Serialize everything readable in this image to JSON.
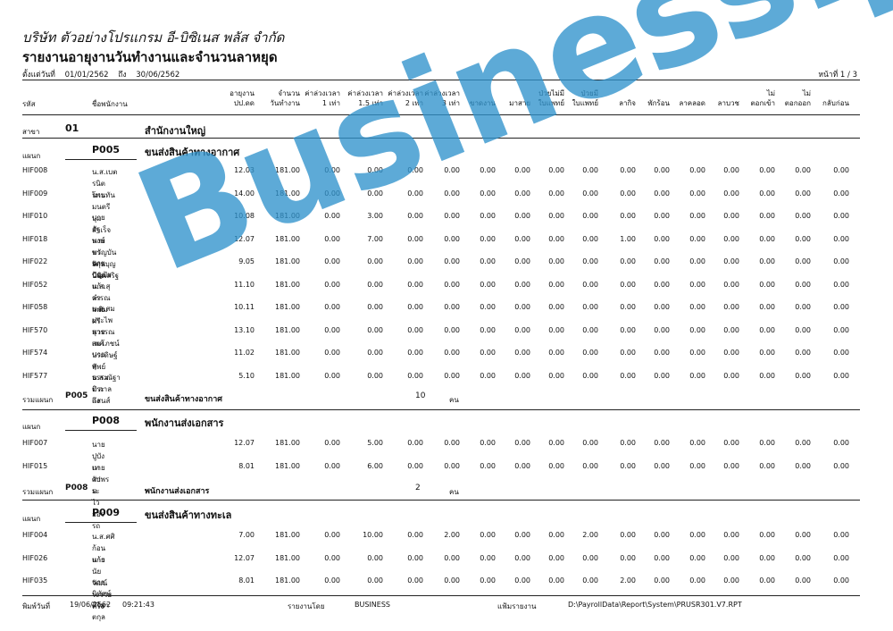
{
  "company": "บริษัท ตัวอย่างโปรแกรม อี-บิซิเนส พลัส จำกัด",
  "title": "รายงานอายุงานวันทำงานและจำนวนลาหยุด",
  "range": {
    "label": "ตั้งแต่วันที่",
    "from": "01/01/2562",
    "to_label": "ถึง",
    "to": "30/06/2562"
  },
  "page": "หน้าที่ 1 / 3",
  "headers": {
    "code": "รหัส",
    "name": "ชื่อพนักงาน",
    "cols": [
      [
        "อายุงาน",
        "ปป.ดด"
      ],
      [
        "จำนวน",
        "วันทำงาน"
      ],
      [
        "ค่าล่วงเวลา",
        "1 เท่า"
      ],
      [
        "ค่าล่วงเวลา",
        "1.5 เท่า"
      ],
      [
        "ค่าล่วงเวลา",
        "2 เท่า"
      ],
      [
        "ค่าล่วงเวลา",
        "3 เท่า"
      ],
      [
        "",
        "ขาดงาน"
      ],
      [
        "",
        "มาสาย"
      ],
      [
        "ป่วยไม่มี",
        "ใบแพทย์"
      ],
      [
        "ป่วยมี",
        "ใบแพทย์"
      ],
      [
        "",
        "ลากิจ"
      ],
      [
        "",
        "พักร้อน"
      ],
      [
        "",
        "ลาคลอด"
      ],
      [
        "",
        "ลาบวช"
      ],
      [
        "ไม่",
        "ตอกเข้า"
      ],
      [
        "ไม่",
        "ตอกออก"
      ],
      [
        "",
        "กลับก่อน"
      ]
    ]
  },
  "branch": {
    "label": "สาขา",
    "code": "01",
    "name": "สำนักงานใหญ่"
  },
  "dept_label": "แผนก",
  "sum_label": "รวมแผนก",
  "unit": "คน",
  "departments": [
    {
      "code": "P005",
      "name": "ขนส่งสินค้าทางอากาศ",
      "count": "10",
      "rows": [
        {
          "code": "HIF008",
          "name": "น.ส.เบตรนิต   โพนทัน",
          "v": [
            "12.03",
            "181.00",
            "0.00",
            "0.00",
            "0.00",
            "0.00",
            "0.00",
            "0.00",
            "0.00",
            "0.00",
            "0.00",
            "0.00",
            "0.00",
            "0.00",
            "0.00",
            "0.00",
            "0.00"
          ]
        },
        {
          "code": "HIF009",
          "name": "นายมนตรี   บุ่มสำเร็จ",
          "v": [
            "14.00",
            "181.00",
            "0.00",
            "0.00",
            "0.00",
            "0.00",
            "0.00",
            "0.00",
            "0.00",
            "0.00",
            "0.00",
            "0.00",
            "0.00",
            "0.00",
            "0.00",
            "0.00",
            "0.00"
          ]
        },
        {
          "code": "HIF010",
          "name": "นายอัฐพงษ์   พรรัตนนิมิต",
          "v": [
            "10.08",
            "181.00",
            "0.00",
            "3.00",
            "0.00",
            "0.00",
            "0.00",
            "0.00",
            "0.00",
            "0.00",
            "0.00",
            "0.00",
            "0.00",
            "0.00",
            "0.00",
            "0.00",
            "0.00"
          ]
        },
        {
          "code": "HIF018",
          "name": "นายขวัญบัน   สกุลบุญประเสริฐ",
          "v": [
            "12.07",
            "181.00",
            "0.00",
            "7.00",
            "0.00",
            "0.00",
            "0.00",
            "0.00",
            "0.00",
            "0.00",
            "1.00",
            "0.00",
            "0.00",
            "0.00",
            "0.00",
            "0.00",
            "0.00"
          ]
        },
        {
          "code": "HIF022",
          "name": "นายปัญปัย   แก้วคำแพง",
          "v": [
            "9.05",
            "181.00",
            "0.00",
            "0.00",
            "0.00",
            "0.00",
            "0.00",
            "0.00",
            "0.00",
            "0.00",
            "0.00",
            "0.00",
            "0.00",
            "0.00",
            "0.00",
            "0.00",
            "0.00"
          ]
        },
        {
          "code": "HIF052",
          "name": "น.ส.สุวรรณา   พิมศรี",
          "v": [
            "11.10",
            "181.00",
            "0.00",
            "0.00",
            "0.00",
            "0.00",
            "0.00",
            "0.00",
            "0.00",
            "0.00",
            "0.00",
            "0.00",
            "0.00",
            "0.00",
            "0.00",
            "0.00",
            "0.00"
          ]
        },
        {
          "code": "HIF058",
          "name": "น.ส.สมประไพ   สุวรรณเพศ",
          "v": [
            "10.11",
            "181.00",
            "0.00",
            "0.00",
            "0.00",
            "0.00",
            "0.00",
            "0.00",
            "0.00",
            "0.00",
            "0.00",
            "0.00",
            "0.00",
            "0.00",
            "0.00",
            "0.00",
            "0.00"
          ]
        },
        {
          "code": "HIF570",
          "name": "นายสมโภชน์   ประดิษฐ์ทัพย์",
          "v": [
            "13.10",
            "181.00",
            "0.00",
            "0.00",
            "0.00",
            "0.00",
            "0.00",
            "0.00",
            "0.00",
            "0.00",
            "0.00",
            "0.00",
            "0.00",
            "0.00",
            "0.00",
            "0.00",
            "0.00"
          ]
        },
        {
          "code": "HIF574",
          "name": "นายสุธรรม   ประถึง",
          "v": [
            "11.02",
            "181.00",
            "0.00",
            "0.00",
            "0.00",
            "0.00",
            "0.00",
            "0.00",
            "0.00",
            "0.00",
            "0.00",
            "0.00",
            "0.00",
            "0.00",
            "0.00",
            "0.00",
            "0.00"
          ]
        },
        {
          "code": "HIF577",
          "name": "น.ส.ณัฐาติ   กาลแสนส์",
          "v": [
            "5.10",
            "181.00",
            "0.00",
            "0.00",
            "0.00",
            "0.00",
            "0.00",
            "0.00",
            "0.00",
            "0.00",
            "0.00",
            "0.00",
            "0.00",
            "0.00",
            "0.00",
            "0.00",
            "0.00"
          ]
        }
      ]
    },
    {
      "code": "P008",
      "name": "พนักงานส่งเอกสาร",
      "count": "2",
      "rows": [
        {
          "code": "HIF007",
          "name": "นายปูบัง   เทศาพรม",
          "v": [
            "12.07",
            "181.00",
            "0.00",
            "5.00",
            "0.00",
            "0.00",
            "0.00",
            "0.00",
            "0.00",
            "0.00",
            "0.00",
            "0.00",
            "0.00",
            "0.00",
            "0.00",
            "0.00",
            "0.00"
          ]
        },
        {
          "code": "HIF015",
          "name": "นายวัประ   ไวยอรรถ",
          "v": [
            "8.01",
            "181.00",
            "0.00",
            "6.00",
            "0.00",
            "0.00",
            "0.00",
            "0.00",
            "0.00",
            "0.00",
            "0.00",
            "0.00",
            "0.00",
            "0.00",
            "0.00",
            "0.00",
            "0.00"
          ]
        }
      ]
    },
    {
      "code": "P009",
      "name": "ขนส่งสินค้าทางทะเล",
      "rows": [
        {
          "code": "HIF004",
          "name": "น.ส.ศศิ   ก้อนแก้ว",
          "v": [
            "7.00",
            "181.00",
            "0.00",
            "10.00",
            "0.00",
            "2.00",
            "0.00",
            "0.00",
            "0.00",
            "2.00",
            "0.00",
            "0.00",
            "0.00",
            "0.00",
            "0.00",
            "0.00",
            "0.00"
          ]
        },
        {
          "code": "HIF026",
          "name": "นายนัยวัฒน์   ระรวยทรง",
          "v": [
            "12.07",
            "181.00",
            "0.00",
            "0.00",
            "0.00",
            "0.00",
            "0.00",
            "0.00",
            "0.00",
            "0.00",
            "0.00",
            "0.00",
            "0.00",
            "0.00",
            "0.00",
            "0.00",
            "0.00"
          ]
        },
        {
          "code": "HIF035",
          "name": "นายนิทัศน์   ศิริมาตกุล",
          "v": [
            "8.01",
            "181.00",
            "0.00",
            "0.00",
            "0.00",
            "0.00",
            "0.00",
            "0.00",
            "0.00",
            "0.00",
            "2.00",
            "0.00",
            "0.00",
            "0.00",
            "0.00",
            "0.00",
            "0.00"
          ]
        }
      ]
    }
  ],
  "footer": {
    "print_label": "พิมพ์วันที่",
    "print_date": "19/06/2562",
    "print_time": "09:21:43",
    "by_label": "รายงานโดย",
    "by": "BUSINESS",
    "file_label": "แฟ้มรายงาน",
    "file": "D:\\PayrollData\\Report\\System\\PRUSR301.V7.RPT"
  },
  "watermark": "Business.plus"
}
